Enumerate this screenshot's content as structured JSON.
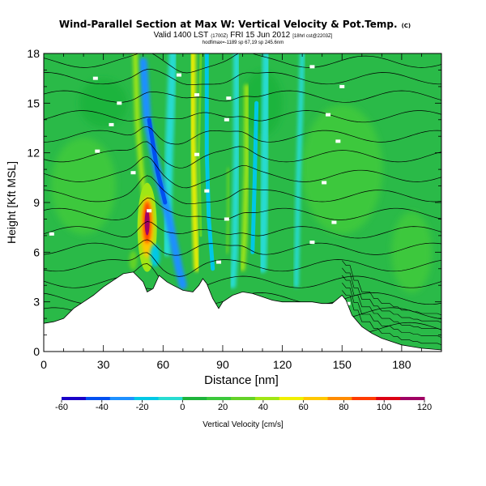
{
  "chart_data": {
    "type": "heatmap",
    "title": "Wind-Parallel Section at Max W: Vertical Velocity & Pot.Temp.",
    "title_mark": "(C)",
    "subtitle_main": "Valid 1400 LST",
    "subtitle_small1": "(1700Z)",
    "subtitle_date": "FRI 15 Jun 2012",
    "subtitle_small2": "[18hrl cst@2203Z]",
    "subtitle_line3": "hodfimax=-1189 sp 67,19 sp 245.6nm",
    "xlabel": "Distance [nm]",
    "ylabel": "Height [Kft MSL]",
    "xlim": [
      0,
      200
    ],
    "ylim": [
      0,
      18
    ],
    "x_ticks": [
      0,
      30,
      60,
      90,
      120,
      150,
      180
    ],
    "y_ticks": [
      0,
      3,
      6,
      9,
      12,
      15,
      18
    ],
    "colorbar": {
      "label": "Vertical Velocity [cm/s]",
      "range": [
        -60,
        120
      ],
      "tick_values": [
        -60,
        -40,
        -20,
        0,
        20,
        40,
        60,
        80,
        100,
        120
      ],
      "tick_labels": [
        "-60",
        "-40",
        "-20",
        "0",
        "20",
        "40",
        "60",
        "80",
        "100",
        "120"
      ],
      "colors": [
        "#1a00c8",
        "#0050f0",
        "#1e90ff",
        "#00c8e6",
        "#28dcd2",
        "#1eb43c",
        "#3cc83c",
        "#64d228",
        "#a0e614",
        "#f0f000",
        "#ffc800",
        "#ff8c00",
        "#ff3c00",
        "#dc0014",
        "#a00064"
      ]
    },
    "terrain_top_kft": [
      [
        0,
        1.7
      ],
      [
        5,
        1.8
      ],
      [
        10,
        2.0
      ],
      [
        15,
        2.6
      ],
      [
        20,
        3.0
      ],
      [
        25,
        3.4
      ],
      [
        30,
        3.9
      ],
      [
        35,
        4.3
      ],
      [
        40,
        4.7
      ],
      [
        45,
        4.8
      ],
      [
        50,
        4.2
      ],
      [
        52,
        3.6
      ],
      [
        55,
        3.8
      ],
      [
        58,
        4.6
      ],
      [
        62,
        4.2
      ],
      [
        65,
        4.0
      ],
      [
        70,
        3.7
      ],
      [
        75,
        3.6
      ],
      [
        78,
        4.0
      ],
      [
        80,
        4.4
      ],
      [
        82,
        4.1
      ],
      [
        85,
        3.2
      ],
      [
        88,
        2.6
      ],
      [
        90,
        3.0
      ],
      [
        95,
        3.4
      ],
      [
        100,
        3.6
      ],
      [
        105,
        3.5
      ],
      [
        110,
        3.3
      ],
      [
        115,
        3.1
      ],
      [
        120,
        3.0
      ],
      [
        125,
        3.0
      ],
      [
        130,
        3.0
      ],
      [
        135,
        3.0
      ],
      [
        140,
        2.9
      ],
      [
        145,
        2.9
      ],
      [
        150,
        3.4
      ],
      [
        152,
        3.1
      ],
      [
        155,
        2.2
      ],
      [
        160,
        1.5
      ],
      [
        165,
        1.1
      ],
      [
        170,
        0.8
      ],
      [
        175,
        0.6
      ],
      [
        180,
        0.4
      ],
      [
        185,
        0.3
      ],
      [
        190,
        0.2
      ],
      [
        200,
        0.1
      ]
    ],
    "updraft_core": {
      "x_nm": 52,
      "y_kft": 7.5,
      "max_cms": 110
    },
    "downdraft_band": {
      "x_nm": [
        55,
        75
      ],
      "y_kft": [
        12,
        4
      ],
      "min_cms": -40
    }
  }
}
